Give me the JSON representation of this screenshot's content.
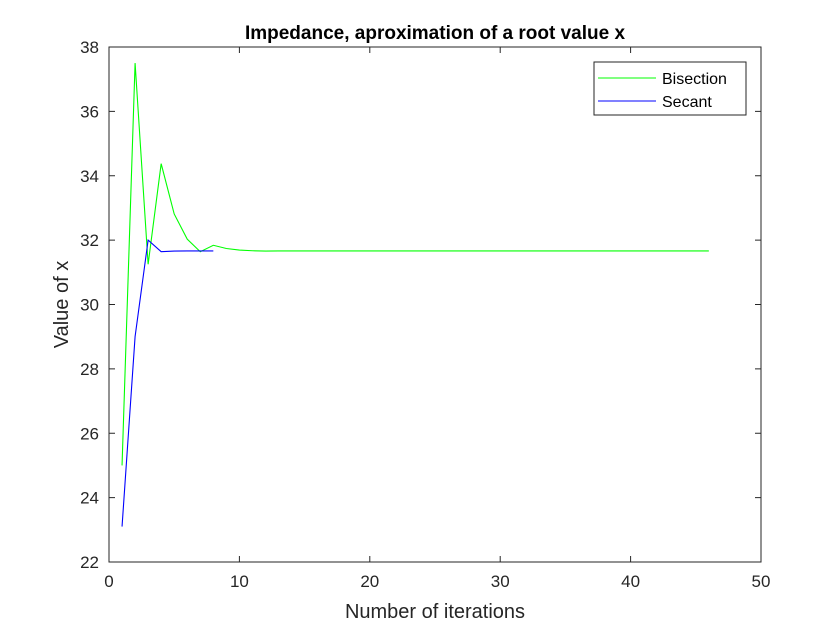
{
  "chart_data": {
    "type": "line",
    "title": "Impedance, aproximation of a root value x",
    "xlabel": "Number of iterations",
    "ylabel": "Value of x",
    "xlim": [
      0,
      50
    ],
    "ylim": [
      22,
      38
    ],
    "xticks": [
      0,
      10,
      20,
      30,
      40,
      50
    ],
    "yticks": [
      22,
      24,
      26,
      28,
      30,
      32,
      34,
      36,
      38
    ],
    "grid": false,
    "legend_position": "top-right",
    "series": [
      {
        "name": "Bisection",
        "color": "#00ff00",
        "x": [
          1,
          2,
          3,
          4,
          5,
          6,
          7,
          8,
          9,
          10,
          11,
          12,
          13,
          14,
          15,
          16,
          17,
          18,
          19,
          20,
          21,
          22,
          23,
          24,
          25,
          26,
          27,
          28,
          29,
          30,
          31,
          32,
          33,
          34,
          35,
          36,
          37,
          38,
          39,
          40,
          41,
          42,
          43,
          44,
          45,
          46
        ],
        "y": [
          25.0,
          37.5,
          31.25,
          34.375,
          32.8125,
          32.03,
          31.64,
          31.84,
          31.74,
          31.69,
          31.67,
          31.66,
          31.665,
          31.665,
          31.665,
          31.665,
          31.665,
          31.665,
          31.665,
          31.665,
          31.665,
          31.665,
          31.665,
          31.665,
          31.665,
          31.665,
          31.665,
          31.665,
          31.665,
          31.665,
          31.665,
          31.665,
          31.665,
          31.665,
          31.665,
          31.665,
          31.665,
          31.665,
          31.665,
          31.665,
          31.665,
          31.665,
          31.665,
          31.665,
          31.665,
          31.665
        ]
      },
      {
        "name": "Secant",
        "color": "#0000ff",
        "x": [
          1,
          2,
          3,
          4,
          5,
          6,
          7,
          8
        ],
        "y": [
          23.1,
          29.0,
          32.0,
          31.64,
          31.66,
          31.665,
          31.665,
          31.665
        ]
      }
    ]
  }
}
